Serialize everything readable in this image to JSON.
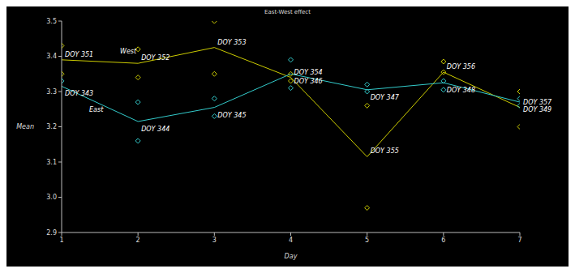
{
  "chart_data": {
    "type": "line",
    "title": "East-West effect",
    "x_label": "Day",
    "y_label": "Mean",
    "xlim": [
      1,
      7
    ],
    "xticks": [
      1,
      2,
      3,
      4,
      5,
      6,
      7
    ],
    "ylim": [
      2.9,
      3.5
    ],
    "yticks": [
      2.9,
      {
        "value": 3,
        "label": "3.0"
      },
      3.1,
      3.2,
      3.3,
      3.4,
      3.5
    ],
    "grid": false,
    "x": [
      1,
      2,
      3,
      4,
      5,
      6,
      7
    ],
    "series": [
      {
        "name": "West",
        "color": "#cccc00",
        "marker": "diamond",
        "values": [
          3.39,
          3.38,
          3.425,
          3.34,
          3.115,
          3.355,
          3.255
        ],
        "point_labels": [
          "DOY 351",
          "DOY 352",
          "DOY 353",
          "DOY 354",
          "DOY 355",
          "DOY 356",
          "DOY 357"
        ],
        "observations": [
          [
            1,
            3.43
          ],
          [
            1,
            3.35
          ],
          [
            2,
            3.42
          ],
          [
            2,
            3.34
          ],
          [
            3,
            3.5
          ],
          [
            3,
            3.35
          ],
          [
            4,
            3.33
          ],
          [
            4,
            3.35
          ],
          [
            5,
            3.26
          ],
          [
            5,
            2.97
          ],
          [
            6,
            3.385
          ],
          [
            6,
            3.355
          ],
          [
            7,
            3.3
          ],
          [
            7,
            3.2
          ]
        ]
      },
      {
        "name": "East",
        "color": "#33cccc",
        "marker": "diamond",
        "values": [
          3.315,
          3.215,
          3.255,
          3.35,
          3.305,
          3.325,
          3.27
        ],
        "point_labels": [
          "DOY 343",
          "DOY 344",
          "DOY 345",
          "DOY 346",
          "DOY 347",
          "DOY 348",
          "DOY 349"
        ],
        "observations": [
          [
            1,
            3.33
          ],
          [
            2,
            3.27
          ],
          [
            2,
            3.16
          ],
          [
            3,
            3.28
          ],
          [
            3,
            3.23
          ],
          [
            4,
            3.39
          ],
          [
            4,
            3.31
          ],
          [
            5,
            3.32
          ],
          [
            5,
            3.3
          ],
          [
            6,
            3.305
          ],
          [
            6,
            3.33
          ],
          [
            7,
            3.28
          ],
          [
            7,
            3.26
          ]
        ]
      }
    ]
  }
}
